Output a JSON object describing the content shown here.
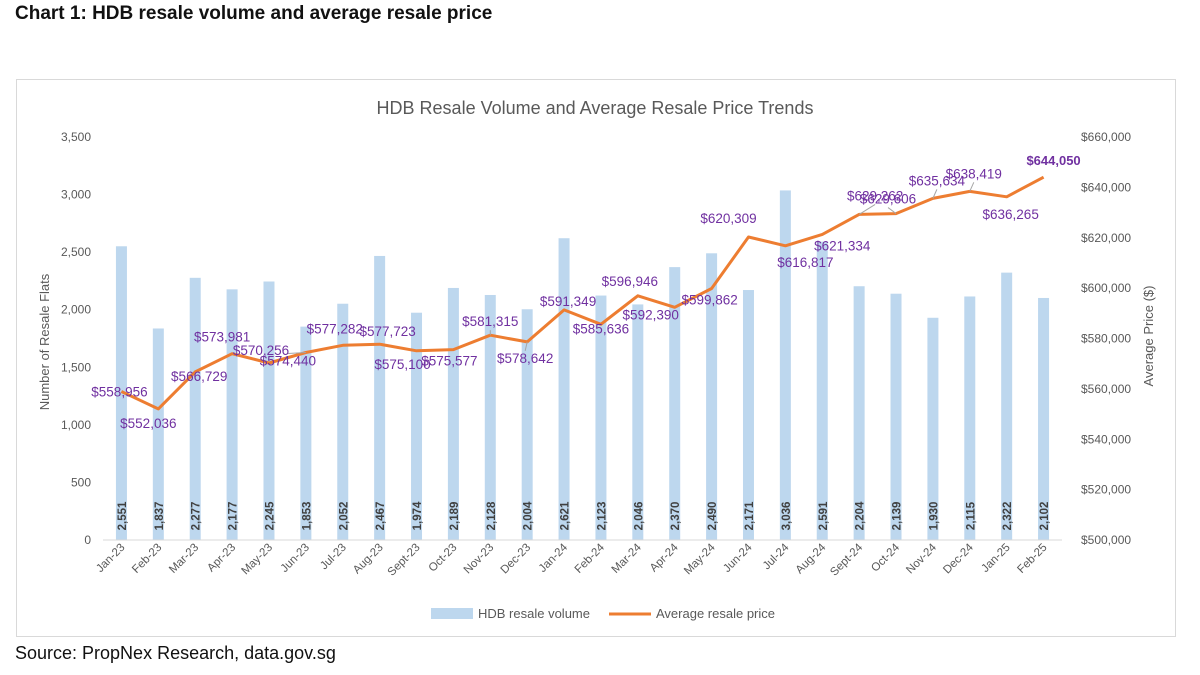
{
  "heading": "Chart 1: HDB resale volume and average resale price",
  "source": "Source: PropNex Research, data.gov.sg",
  "colors": {
    "bar": "#bdd7ee",
    "line": "#ed7d31",
    "price_label": "#7030a0",
    "bar_label": "#404040"
  },
  "chart_data": {
    "type": "bar",
    "title": "HDB Resale Volume and Average Resale Price Trends",
    "categories": [
      "Jan-23",
      "Feb-23",
      "Mar-23",
      "Apr-23",
      "May-23",
      "Jun-23",
      "Jul-23",
      "Aug-23",
      "Sept-23",
      "Oct-23",
      "Nov-23",
      "Dec-23",
      "Jan-24",
      "Feb-24",
      "Mar-24",
      "Apr-24",
      "May-24",
      "Jun-24",
      "Jul-24",
      "Aug-24",
      "Sept-24",
      "Oct-24",
      "Nov-24",
      "Dec-24",
      "Jan-25",
      "Feb-25"
    ],
    "ylabel": "Number of Resale Flats",
    "y2label": "Average Price ($)",
    "ylim": [
      0,
      3500
    ],
    "y_ticks": [
      "0",
      "500",
      "1,000",
      "1,500",
      "2,000",
      "2,500",
      "3,000",
      "3,500"
    ],
    "y2lim": [
      500000,
      660000
    ],
    "y2_ticks": [
      "$500,000",
      "$520,000",
      "$540,000",
      "$560,000",
      "$580,000",
      "$600,000",
      "$620,000",
      "$640,000",
      "$660,000"
    ],
    "series": [
      {
        "name": "HDB resale volume",
        "type": "bar",
        "values": [
          2551,
          1837,
          2277,
          2177,
          2245,
          1853,
          2052,
          2467,
          1974,
          2189,
          2128,
          2004,
          2621,
          2123,
          2046,
          2370,
          2490,
          2171,
          3036,
          2591,
          2204,
          2139,
          1930,
          2115,
          2322,
          2102
        ],
        "labels": [
          "2,551",
          "1,837",
          "2,277",
          "2,177",
          "2,245",
          "1,853",
          "2,052",
          "2,467",
          "1,974",
          "2,189",
          "2,128",
          "2,004",
          "2,621",
          "2,123",
          "2,046",
          "2,370",
          "2,490",
          "2,171",
          "3,036",
          "2,591",
          "2,204",
          "2,139",
          "1,930",
          "2,115",
          "2,322",
          "2,102"
        ]
      },
      {
        "name": "Average resale price",
        "type": "line",
        "axis": "right",
        "values": [
          558956,
          552036,
          566729,
          573981,
          570256,
          574440,
          577282,
          577723,
          575100,
          575577,
          581315,
          578642,
          591349,
          585636,
          596946,
          592390,
          599862,
          620309,
          616817,
          621334,
          629262,
          629606,
          635634,
          638419,
          636265,
          644050
        ],
        "labels": [
          "$558,956",
          "$552,036",
          "$566,729",
          "$573,981",
          "$570,256",
          "$574,440",
          "$577,282",
          "$577,723",
          "$575,100",
          "$575,577",
          "$581,315",
          "$578,642",
          "$591,349",
          "$585,636",
          "$596,946",
          "$592,390",
          "$599,862",
          "$620,309",
          "$616,817",
          "$621,334",
          "$629,262",
          "$629,606",
          "$635,634",
          "$638,419",
          "$636,265",
          "$644,050"
        ]
      }
    ],
    "legend_position": "bottom",
    "grid": false
  }
}
